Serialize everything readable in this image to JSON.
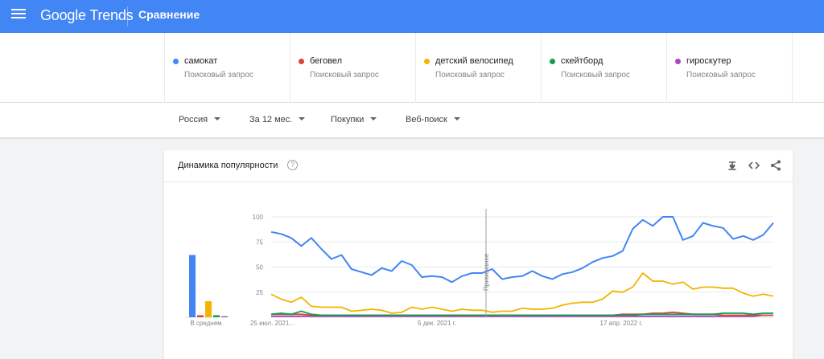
{
  "header": {
    "logo": "Google Trends",
    "page_title": "Сравнение"
  },
  "terms": [
    {
      "name": "самокат",
      "sub": "Поисковый запрос",
      "color": "#4285f4"
    },
    {
      "name": "беговел",
      "sub": "Поисковый запрос",
      "color": "#db4437"
    },
    {
      "name": "детский велосипед",
      "sub": "Поисковый запрос",
      "color": "#f4b400"
    },
    {
      "name": "скейтборд",
      "sub": "Поисковый запрос",
      "color": "#0f9d58"
    },
    {
      "name": "гироскутер",
      "sub": "Поисковый запрос",
      "color": "#ab47bc"
    }
  ],
  "filters": {
    "region": "Россия",
    "period": "За 12 мес.",
    "category": "Покупки",
    "search_type": "Веб-поиск"
  },
  "card": {
    "title": "Динамика популярности",
    "help": "?"
  },
  "chart_data": {
    "type": "line",
    "ylim": [
      0,
      100
    ],
    "yticks": [
      "100",
      "75",
      "50",
      "25"
    ],
    "grid": true,
    "avg_label": "В среднем",
    "note_label": "Примечание",
    "x_tick_labels": [
      "25 июл. 2021...",
      "5 дек. 2021 г.",
      "17 апр. 2022 г."
    ],
    "averages": [
      {
        "name": "самокат",
        "value": 62,
        "color": "#4285f4"
      },
      {
        "name": "беговел",
        "value": 2,
        "color": "#db4437"
      },
      {
        "name": "детский велосипед",
        "value": 16,
        "color": "#f4b400"
      },
      {
        "name": "скейтборд",
        "value": 2,
        "color": "#0f9d58"
      },
      {
        "name": "гироскутер",
        "value": 1,
        "color": "#ab47bc"
      }
    ],
    "series": [
      {
        "name": "самокат",
        "color": "#4285f4",
        "values": [
          85,
          83,
          79,
          71,
          79,
          68,
          58,
          62,
          48,
          45,
          42,
          49,
          46,
          56,
          52,
          40,
          41,
          40,
          35,
          41,
          44,
          44,
          48,
          38,
          40,
          41,
          46,
          41,
          38,
          43,
          45,
          49,
          55,
          59,
          61,
          66,
          88,
          97,
          91,
          100,
          100,
          77,
          81,
          94,
          91,
          89,
          78,
          81,
          77,
          82,
          94
        ]
      },
      {
        "name": "беговел",
        "color": "#db4437",
        "values": [
          3,
          3,
          3,
          3,
          2,
          2,
          2,
          2,
          2,
          2,
          2,
          2,
          2,
          2,
          2,
          2,
          2,
          2,
          2,
          2,
          2,
          2,
          2,
          2,
          2,
          2,
          2,
          2,
          2,
          2,
          2,
          2,
          2,
          2,
          2,
          3,
          3,
          3,
          4,
          4,
          5,
          4,
          3,
          3,
          3,
          2,
          2,
          2,
          2,
          2,
          2
        ]
      },
      {
        "name": "детский велосипед",
        "color": "#f4b400",
        "values": [
          23,
          18,
          15,
          20,
          11,
          10,
          10,
          10,
          6,
          7,
          8,
          7,
          4,
          5,
          10,
          8,
          10,
          8,
          6,
          8,
          7,
          7,
          5,
          6,
          6,
          9,
          8,
          8,
          9,
          12,
          14,
          15,
          15,
          18,
          26,
          25,
          30,
          44,
          36,
          36,
          33,
          35,
          28,
          30,
          30,
          29,
          29,
          24,
          21,
          23,
          21
        ]
      },
      {
        "name": "скейтборд",
        "color": "#0f9d58",
        "values": [
          3,
          4,
          3,
          6,
          3,
          2,
          2,
          2,
          2,
          2,
          2,
          2,
          2,
          2,
          2,
          2,
          2,
          2,
          2,
          2,
          2,
          2,
          2,
          2,
          2,
          2,
          2,
          2,
          2,
          2,
          2,
          2,
          2,
          2,
          2,
          2,
          2,
          3,
          3,
          3,
          3,
          3,
          3,
          3,
          3,
          4,
          4,
          4,
          3,
          4,
          4
        ]
      },
      {
        "name": "гироскутер",
        "color": "#ab47bc",
        "values": [
          1,
          1,
          1,
          1,
          1,
          1,
          1,
          1,
          1,
          1,
          1,
          1,
          1,
          1,
          1,
          1,
          1,
          1,
          1,
          1,
          1,
          1,
          1,
          1,
          1,
          1,
          1,
          1,
          1,
          1,
          1,
          1,
          1,
          1,
          1,
          1,
          1,
          1,
          1,
          1,
          1,
          1,
          1,
          1,
          1,
          1,
          1,
          1,
          1,
          2,
          2
        ]
      }
    ]
  }
}
